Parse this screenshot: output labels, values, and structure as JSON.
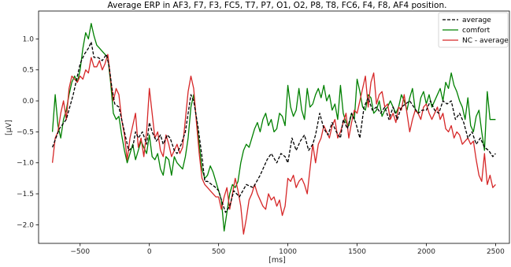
{
  "chart_data": {
    "type": "line",
    "title": "Average ERP in AF3, F7, F3, FC5, T7, P7, O1, O2, P8, T8, FC6, F4, F8, AF4 position.",
    "xlabel": "[ms]",
    "ylabel": "[μV]",
    "xlim": [
      -800,
      2600
    ],
    "ylim": [
      -2.3,
      1.45
    ],
    "xticks": [
      -500,
      0,
      500,
      1000,
      1500,
      2000,
      2500
    ],
    "xtick_labels": [
      "−500",
      "0",
      "500",
      "1000",
      "1500",
      "2000",
      "2500"
    ],
    "yticks": [
      1.0,
      0.5,
      0.0,
      -0.5,
      -1.0,
      -1.5,
      -2.0
    ],
    "ytick_labels": [
      "1.0",
      "0.5",
      "0.0",
      "−0.5",
      "−1.0",
      "−1.5",
      "−2.0"
    ],
    "legend_position": "top-right",
    "series": [
      {
        "name": "average",
        "color": "#000000",
        "dash": true,
        "x": [
          -700,
          -650,
          -600,
          -550,
          -500,
          -470,
          -440,
          -420,
          -400,
          -370,
          -340,
          -310,
          -290,
          -270,
          -250,
          -220,
          -200,
          -170,
          -150,
          -120,
          -100,
          -80,
          -50,
          -20,
          0,
          20,
          50,
          80,
          100,
          130,
          150,
          180,
          200,
          230,
          260,
          300,
          320,
          350,
          380,
          400,
          420,
          450,
          480,
          500,
          520,
          550,
          580,
          610,
          650,
          700,
          750,
          800,
          850,
          880,
          920,
          950,
          980,
          1000,
          1030,
          1060,
          1090,
          1120,
          1150,
          1180,
          1200,
          1230,
          1260,
          1290,
          1320,
          1350,
          1380,
          1400,
          1430,
          1460,
          1490,
          1520,
          1550,
          1580,
          1610,
          1640,
          1670,
          1700,
          1730,
          1760,
          1790,
          1820,
          1850,
          1880,
          1910,
          1940,
          1970,
          2000,
          2030,
          2060,
          2090,
          2120,
          2150,
          2180,
          2210,
          2240,
          2270,
          2300,
          2330,
          2360,
          2390,
          2420,
          2450,
          2480,
          2500
        ],
        "y": [
          -0.75,
          -0.45,
          -0.3,
          0.1,
          0.6,
          0.75,
          0.85,
          0.95,
          0.7,
          0.7,
          0.65,
          0.75,
          0.55,
          0.2,
          -0.05,
          -0.1,
          -0.3,
          -0.6,
          -0.8,
          -0.75,
          -0.5,
          -0.6,
          -0.5,
          -0.7,
          -0.35,
          -0.5,
          -0.65,
          -0.55,
          -0.7,
          -0.55,
          -0.6,
          -0.8,
          -0.85,
          -0.7,
          -0.5,
          0.1,
          0.0,
          -0.4,
          -0.9,
          -1.3,
          -1.3,
          -1.35,
          -1.4,
          -1.45,
          -1.6,
          -1.8,
          -1.7,
          -1.45,
          -1.55,
          -1.35,
          -1.4,
          -1.2,
          -0.95,
          -0.85,
          -1.0,
          -0.85,
          -0.9,
          -1.0,
          -0.6,
          -0.8,
          -0.65,
          -0.55,
          -0.8,
          -0.7,
          -0.55,
          -0.2,
          -0.45,
          -0.55,
          -0.35,
          -0.5,
          -0.6,
          -0.3,
          -0.45,
          -0.2,
          -0.35,
          -0.6,
          -0.1,
          0.05,
          -0.15,
          -0.1,
          -0.2,
          -0.1,
          -0.3,
          -0.1,
          -0.3,
          -0.1,
          -0.05,
          0.0,
          -0.1,
          -0.2,
          -0.15,
          -0.15,
          0.0,
          -0.15,
          -0.2,
          0.0,
          -0.05,
          0.0,
          -0.3,
          -0.2,
          -0.35,
          -0.6,
          -0.5,
          -0.7,
          -0.6,
          -0.75,
          -0.8,
          -0.9,
          -0.85
        ]
      },
      {
        "name": "comfort",
        "color": "#008000",
        "dash": false,
        "x": [
          -700,
          -680,
          -660,
          -640,
          -620,
          -600,
          -580,
          -560,
          -540,
          -520,
          -500,
          -480,
          -460,
          -440,
          -420,
          -400,
          -380,
          -360,
          -340,
          -320,
          -300,
          -280,
          -260,
          -240,
          -220,
          -200,
          -180,
          -160,
          -140,
          -120,
          -100,
          -80,
          -60,
          -40,
          -20,
          0,
          20,
          40,
          60,
          80,
          100,
          120,
          140,
          160,
          180,
          200,
          220,
          240,
          260,
          280,
          300,
          320,
          340,
          360,
          380,
          400,
          420,
          440,
          460,
          480,
          500,
          520,
          540,
          560,
          580,
          600,
          620,
          640,
          660,
          680,
          700,
          720,
          740,
          760,
          780,
          800,
          820,
          840,
          860,
          880,
          900,
          920,
          940,
          960,
          980,
          1000,
          1020,
          1040,
          1060,
          1080,
          1100,
          1120,
          1140,
          1160,
          1180,
          1200,
          1220,
          1240,
          1260,
          1280,
          1300,
          1320,
          1340,
          1360,
          1380,
          1400,
          1420,
          1440,
          1460,
          1480,
          1500,
          1520,
          1540,
          1560,
          1580,
          1600,
          1620,
          1640,
          1660,
          1680,
          1700,
          1720,
          1740,
          1760,
          1780,
          1800,
          1820,
          1840,
          1860,
          1880,
          1900,
          1920,
          1940,
          1960,
          1980,
          2000,
          2020,
          2040,
          2060,
          2080,
          2100,
          2120,
          2140,
          2160,
          2180,
          2200,
          2220,
          2240,
          2260,
          2280,
          2300,
          2320,
          2340,
          2360,
          2380,
          2400,
          2420,
          2440,
          2460,
          2480,
          2500
        ],
        "y": [
          -0.5,
          0.1,
          -0.4,
          -0.6,
          -0.3,
          -0.15,
          0.1,
          0.3,
          0.4,
          0.3,
          0.5,
          0.85,
          1.1,
          1.0,
          1.25,
          1.05,
          0.9,
          0.85,
          0.8,
          0.75,
          0.7,
          0.3,
          -0.2,
          -0.3,
          -0.25,
          -0.55,
          -0.8,
          -1.0,
          -0.85,
          -0.7,
          -0.95,
          -0.8,
          -0.65,
          -0.75,
          -0.85,
          -0.55,
          -0.9,
          -0.95,
          -0.85,
          -1.1,
          -1.2,
          -0.9,
          -0.95,
          -1.2,
          -0.9,
          -1.0,
          -1.05,
          -1.1,
          -0.9,
          -0.6,
          -0.1,
          0.1,
          -0.3,
          -0.7,
          -1.1,
          -1.25,
          -1.2,
          -1.05,
          -1.15,
          -1.3,
          -1.45,
          -1.6,
          -2.1,
          -1.8,
          -1.5,
          -1.35,
          -1.4,
          -1.3,
          -1.0,
          -0.8,
          -0.7,
          -0.75,
          -0.6,
          -0.45,
          -0.35,
          -0.5,
          -0.3,
          -0.2,
          -0.4,
          -0.3,
          -0.5,
          -0.45,
          -0.2,
          -0.25,
          -0.4,
          0.25,
          -0.1,
          -0.25,
          -0.15,
          0.2,
          -0.15,
          -0.3,
          0.2,
          -0.1,
          -0.05,
          0.1,
          0.2,
          0.05,
          0.25,
          0.0,
          0.1,
          -0.15,
          -0.05,
          -0.3,
          0.25,
          -0.2,
          -0.35,
          -0.4,
          -0.2,
          -0.3,
          0.35,
          0.15,
          -0.1,
          -0.15,
          0.1,
          0.05,
          -0.2,
          -0.15,
          0.0,
          -0.25,
          -0.15,
          -0.1,
          0.0,
          -0.1,
          -0.2,
          -0.1,
          0.1,
          0.0,
          -0.15,
          0.05,
          0.2,
          -0.15,
          -0.2,
          0.05,
          0.15,
          -0.05,
          0.1,
          -0.1,
          0.0,
          0.1,
          0.2,
          0.0,
          0.3,
          0.2,
          0.45,
          0.25,
          0.15,
          0.0,
          -0.1,
          -0.3,
          0.05,
          -0.4,
          -0.5,
          -0.25,
          -0.15,
          -0.5,
          -0.8,
          0.15,
          -0.3,
          -0.3,
          -0.3
        ]
      },
      {
        "name": "NC - average",
        "color": "#d62728",
        "dash": false,
        "x": [
          -700,
          -680,
          -660,
          -640,
          -620,
          -600,
          -580,
          -560,
          -540,
          -520,
          -500,
          -480,
          -460,
          -440,
          -420,
          -400,
          -380,
          -360,
          -340,
          -320,
          -300,
          -280,
          -260,
          -240,
          -220,
          -200,
          -180,
          -160,
          -140,
          -120,
          -100,
          -80,
          -60,
          -40,
          -20,
          0,
          20,
          40,
          60,
          80,
          100,
          120,
          140,
          160,
          180,
          200,
          220,
          240,
          260,
          280,
          300,
          320,
          340,
          360,
          380,
          400,
          420,
          440,
          460,
          480,
          500,
          520,
          540,
          560,
          580,
          600,
          620,
          640,
          660,
          680,
          700,
          720,
          740,
          760,
          780,
          800,
          820,
          840,
          860,
          880,
          900,
          920,
          940,
          960,
          980,
          1000,
          1020,
          1040,
          1060,
          1080,
          1100,
          1120,
          1140,
          1160,
          1180,
          1200,
          1220,
          1240,
          1260,
          1280,
          1300,
          1320,
          1340,
          1360,
          1380,
          1400,
          1420,
          1440,
          1460,
          1480,
          1500,
          1520,
          1540,
          1560,
          1580,
          1600,
          1620,
          1640,
          1660,
          1680,
          1700,
          1720,
          1740,
          1760,
          1780,
          1800,
          1820,
          1840,
          1860,
          1880,
          1900,
          1920,
          1940,
          1960,
          1980,
          2000,
          2020,
          2040,
          2060,
          2080,
          2100,
          2120,
          2140,
          2160,
          2180,
          2200,
          2220,
          2240,
          2260,
          2280,
          2300,
          2320,
          2340,
          2360,
          2380,
          2400,
          2420,
          2440,
          2460,
          2480,
          2500
        ],
        "y": [
          -1.0,
          -0.6,
          -0.5,
          -0.2,
          0.0,
          -0.3,
          0.2,
          0.4,
          0.35,
          0.3,
          0.4,
          0.35,
          0.5,
          0.45,
          0.7,
          0.55,
          0.55,
          0.65,
          0.5,
          0.6,
          0.75,
          0.35,
          0.0,
          0.2,
          0.1,
          -0.3,
          -0.55,
          -0.95,
          -0.6,
          -0.4,
          -0.2,
          -0.75,
          -0.6,
          -0.9,
          -0.5,
          0.2,
          -0.2,
          -0.6,
          -0.5,
          -0.8,
          -0.9,
          -0.55,
          -0.7,
          -0.9,
          -0.8,
          -0.7,
          -0.85,
          -0.75,
          -0.3,
          0.15,
          0.4,
          0.2,
          -0.35,
          -0.85,
          -1.25,
          -1.35,
          -1.4,
          -1.45,
          -1.5,
          -1.55,
          -1.55,
          -1.75,
          -1.55,
          -1.4,
          -1.75,
          -1.5,
          -1.25,
          -1.45,
          -1.7,
          -2.15,
          -1.9,
          -1.6,
          -1.5,
          -1.35,
          -1.5,
          -1.6,
          -1.7,
          -1.75,
          -1.5,
          -1.6,
          -1.55,
          -1.7,
          -1.6,
          -1.85,
          -1.7,
          -1.25,
          -1.3,
          -1.2,
          -1.4,
          -1.3,
          -1.25,
          -1.35,
          -1.5,
          -1.1,
          -0.7,
          -1.0,
          -0.7,
          -0.6,
          -0.4,
          -0.5,
          -0.6,
          -0.4,
          -0.3,
          -0.6,
          -0.5,
          -0.35,
          -0.2,
          -0.6,
          -0.35,
          -0.15,
          -0.2,
          0.0,
          0.2,
          0.4,
          -0.1,
          0.3,
          0.45,
          -0.05,
          0.1,
          0.15,
          -0.1,
          -0.05,
          -0.3,
          -0.2,
          -0.35,
          -0.1,
          -0.15,
          0.1,
          -0.2,
          -0.5,
          -0.3,
          -0.15,
          -0.2,
          -0.3,
          -0.1,
          -0.05,
          -0.2,
          -0.3,
          -0.2,
          -0.1,
          -0.3,
          -0.2,
          -0.45,
          -0.5,
          -0.4,
          -0.6,
          -0.5,
          -0.55,
          -0.7,
          -0.65,
          -0.6,
          -0.7,
          -0.65,
          -0.95,
          -1.2,
          -1.3,
          -0.85,
          -1.35,
          -1.2,
          -1.4,
          -1.35
        ]
      }
    ]
  }
}
